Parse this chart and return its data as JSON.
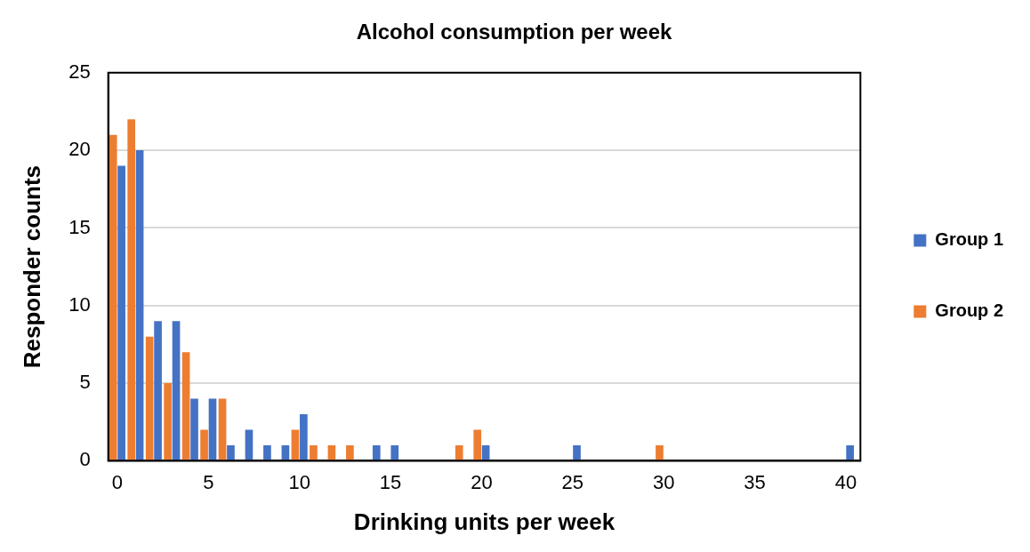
{
  "chart_data": {
    "type": "bar",
    "title": "Alcohol consumption per week",
    "xlabel": "Drinking units per week",
    "ylabel": "Responder counts",
    "x": [
      0,
      1,
      2,
      3,
      4,
      5,
      6,
      7,
      8,
      9,
      10,
      11,
      12,
      13,
      14,
      15,
      16,
      17,
      18,
      19,
      20,
      21,
      22,
      23,
      24,
      25,
      26,
      27,
      28,
      29,
      30,
      31,
      32,
      33,
      34,
      35,
      36,
      37,
      38,
      39,
      40
    ],
    "series": [
      {
        "name": "Group 1",
        "color": "#4472c4",
        "values": [
          19,
          20,
          9,
          9,
          4,
          4,
          1,
          2,
          1,
          1,
          3,
          0,
          0,
          0,
          1,
          1,
          0,
          0,
          0,
          0,
          1,
          0,
          0,
          0,
          0,
          1,
          0,
          0,
          0,
          0,
          0,
          0,
          0,
          0,
          0,
          0,
          0,
          0,
          0,
          0,
          1
        ]
      },
      {
        "name": "Group 2",
        "color": "#ed7d31",
        "values": [
          21,
          22,
          8,
          5,
          7,
          2,
          4,
          0,
          0,
          0,
          2,
          1,
          1,
          1,
          0,
          0,
          0,
          0,
          0,
          1,
          2,
          0,
          0,
          0,
          0,
          0,
          0,
          0,
          0,
          0,
          1,
          0,
          0,
          0,
          0,
          0,
          0,
          0,
          0,
          0,
          0
        ]
      }
    ],
    "xlim": [
      -0.5,
      40.8
    ],
    "xticks": [
      0,
      5,
      10,
      15,
      20,
      25,
      30,
      35,
      40
    ],
    "ylim": [
      0,
      25
    ],
    "yticks": [
      0,
      5,
      10,
      15,
      20,
      25
    ],
    "grid": "y",
    "legend": "right"
  }
}
